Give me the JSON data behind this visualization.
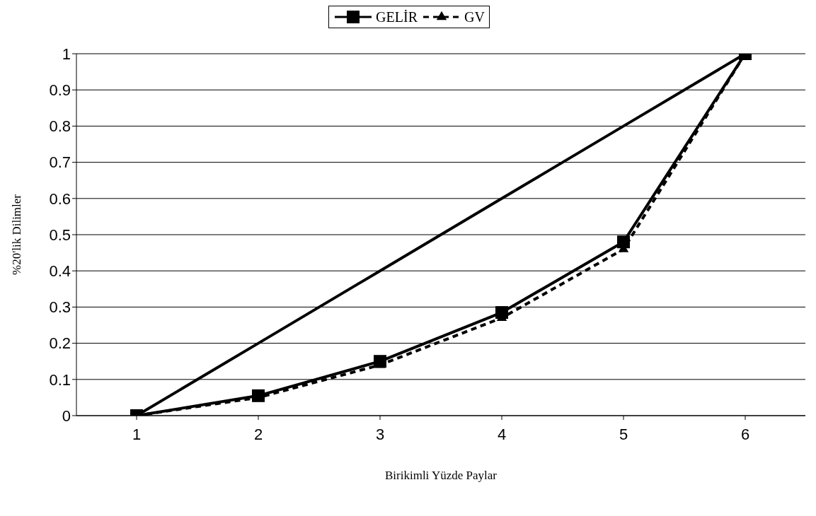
{
  "chart_data": {
    "type": "line",
    "xlabel": "Birikimli Yüzde Paylar",
    "ylabel": "%20'lik Dilimler",
    "categories": [
      "1",
      "2",
      "3",
      "4",
      "5",
      "6"
    ],
    "series": [
      {
        "name": "GELİR",
        "color": "#000000",
        "values": [
          0,
          0.055,
          0.15,
          0.285,
          0.48,
          1
        ],
        "marker": "square",
        "line_style": "solid"
      },
      {
        "name": "GV",
        "color": "#000000",
        "values": [
          0,
          0.05,
          0.14,
          0.27,
          0.46,
          1
        ],
        "marker": "triangle",
        "line_style": "dashed"
      },
      {
        "color": "#000000",
        "values": [
          0,
          0.2,
          0.4,
          0.6,
          0.8,
          1
        ],
        "marker": "none",
        "line_style": "solid"
      }
    ],
    "ylim": [
      0,
      1
    ],
    "yticks": [
      0,
      0.1,
      0.2,
      0.3,
      0.4,
      0.5,
      0.6,
      0.7,
      0.8,
      0.9,
      1
    ],
    "grid": "y",
    "legend": "top"
  }
}
